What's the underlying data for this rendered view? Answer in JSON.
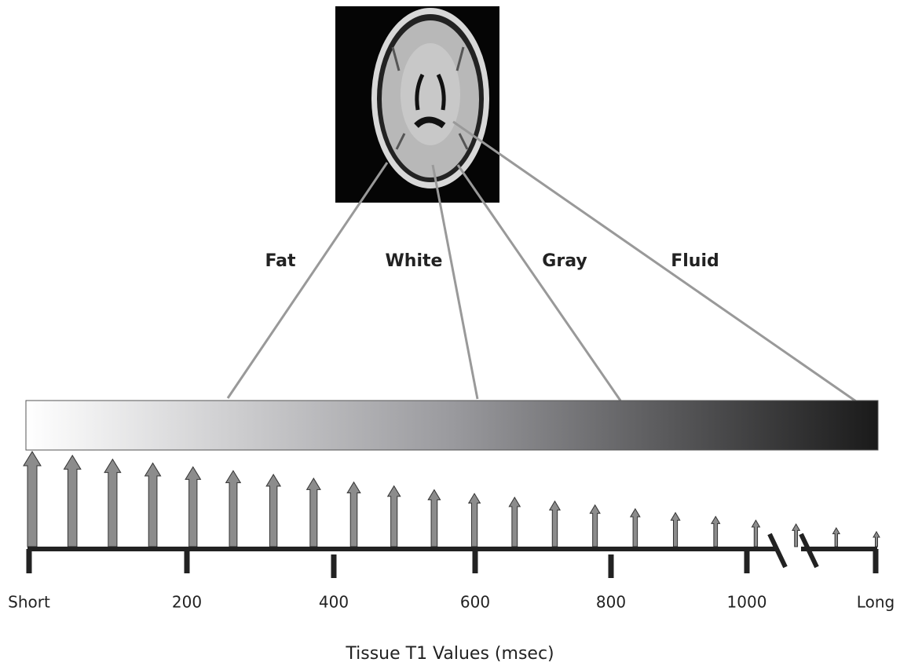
{
  "tissues": [
    "Fat",
    "White",
    "Gray",
    "Fluid"
  ],
  "axis": {
    "tick_labels": [
      "Short",
      "200",
      "400",
      "600",
      "800",
      "1000",
      "Long"
    ],
    "title": "Tissue T1 Values (msec)"
  }
}
